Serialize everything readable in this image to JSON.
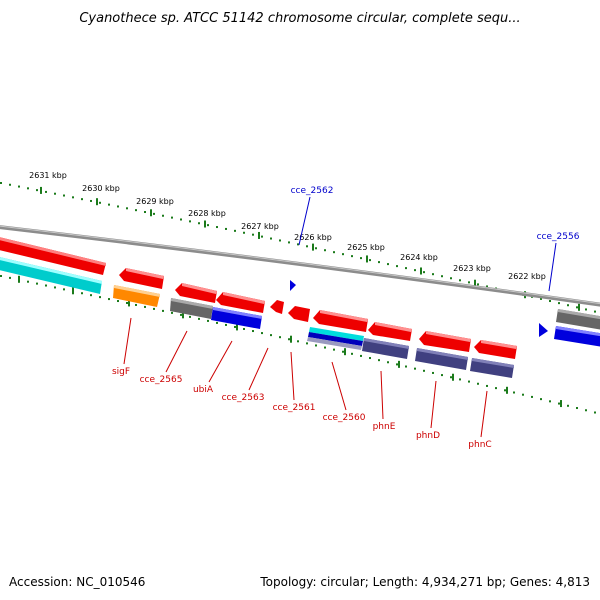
{
  "title": "Cyanothece sp. ATCC 51142 chromosome circular, complete sequ...",
  "footer": {
    "accession": "Accession: NC_010546",
    "summary": "Topology: circular; Length: 4,934,271 bp; Genes: 4,813"
  },
  "colors": {
    "forward_gene": "#ff0000",
    "reverse_gene": "#dd0000",
    "tick": "#1a7a1a",
    "backbone": "#808080",
    "label_red": "#cc0000",
    "label_blue": "#0000cc"
  },
  "scale_labels": [
    {
      "text": "2631 kbp"
    },
    {
      "text": "2630 kbp"
    },
    {
      "text": "2629 kbp"
    },
    {
      "text": "2628 kbp"
    },
    {
      "text": "2627 kbp"
    },
    {
      "text": "2626 kbp"
    },
    {
      "text": "2625 kbp"
    },
    {
      "text": "2624 kbp"
    },
    {
      "text": "2623 kbp"
    },
    {
      "text": "2622 kbp"
    }
  ],
  "gene_labels": [
    {
      "text": "cce_2562",
      "color": "#0000cc"
    },
    {
      "text": "cce_2556",
      "color": "#0000cc"
    },
    {
      "text": "sigF",
      "color": "#cc0000"
    },
    {
      "text": "cce_2565",
      "color": "#cc0000"
    },
    {
      "text": "ubiA",
      "color": "#cc0000"
    },
    {
      "text": "cce_2563",
      "color": "#cc0000"
    },
    {
      "text": "cce_2561",
      "color": "#cc0000"
    },
    {
      "text": "cce_2560",
      "color": "#cc0000"
    },
    {
      "text": "phnE",
      "color": "#cc0000"
    },
    {
      "text": "phnD",
      "color": "#cc0000"
    },
    {
      "text": "phnC",
      "color": "#cc0000"
    }
  ]
}
